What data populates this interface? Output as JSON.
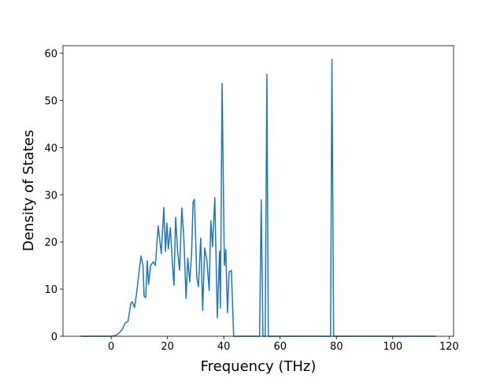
{
  "chart_data": {
    "type": "line",
    "x_label": "Frequency (THz)",
    "y_label": "Density of States",
    "x": [
      -10.8,
      0,
      1,
      2,
      3,
      4,
      5,
      6,
      7,
      7.5,
      8.3,
      9,
      10.6,
      11.3,
      11.7,
      12.3,
      12.8,
      13.3,
      14,
      15,
      15.7,
      16.7,
      17.8,
      18.7,
      19.3,
      19.8,
      20.3,
      21,
      21.8,
      22.3,
      22.9,
      23.6,
      24.3,
      25.1,
      25.8,
      26.6,
      27.2,
      27.9,
      28.6,
      29.1,
      29.6,
      30.4,
      31,
      31.8,
      32.5,
      33.2,
      34,
      34.8,
      35.4,
      36,
      36.8,
      37.7,
      38.5,
      38.8,
      39.4,
      40.2,
      40.7,
      41.3,
      41.9,
      42.7,
      43.5,
      52.7,
      53.3,
      53.9,
      54.7,
      55.3,
      55.8,
      77.9,
      78.4,
      79,
      115.3
    ],
    "values": [
      0,
      0,
      0.1,
      0.3,
      0.8,
      1.5,
      2.8,
      3.2,
      7,
      7.3,
      6.1,
      9,
      17,
      15,
      8.5,
      8.2,
      16,
      11,
      15,
      15.8,
      15,
      23.4,
      17.5,
      27.3,
      18,
      24,
      18.5,
      23,
      15,
      10.8,
      25.2,
      18,
      14,
      27.2,
      21,
      8,
      16.6,
      11.5,
      18,
      28.5,
      29,
      12.5,
      10.5,
      20.8,
      5.5,
      18.7,
      16,
      9.7,
      24.5,
      19,
      29.4,
      3.9,
      18,
      6,
      53.6,
      15,
      18.4,
      5,
      13.7,
      13.9,
      0,
      0,
      28.9,
      0,
      0,
      55.5,
      0,
      0,
      58.7,
      0,
      0
    ],
    "color": "#1f77b4",
    "xlim": [
      -17.1,
      121.6
    ],
    "xticks": [
      0,
      20,
      40,
      60,
      80,
      100,
      120
    ],
    "ylim": [
      0,
      61.6
    ],
    "yticks": [
      0,
      10,
      20,
      30,
      40,
      50,
      60
    ]
  }
}
